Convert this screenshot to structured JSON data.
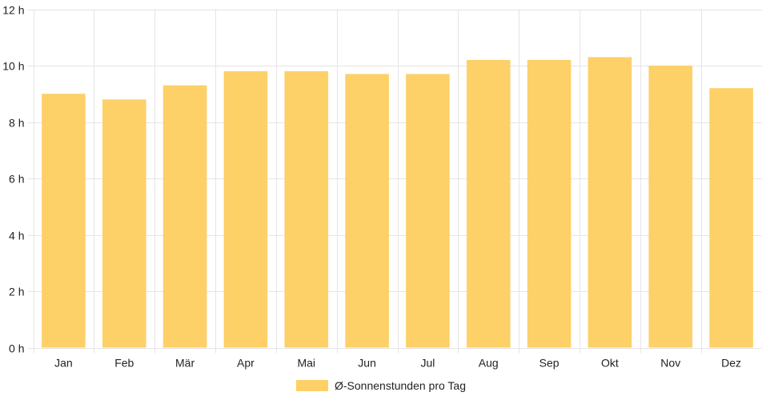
{
  "chart_data": {
    "type": "bar",
    "categories": [
      "Jan",
      "Feb",
      "Mär",
      "Apr",
      "Mai",
      "Jun",
      "Jul",
      "Aug",
      "Sep",
      "Okt",
      "Nov",
      "Dez"
    ],
    "series": [
      {
        "name": "Ø-Sonnenstunden pro Tag",
        "values": [
          9.0,
          8.8,
          9.3,
          9.8,
          9.8,
          9.7,
          9.7,
          10.2,
          10.2,
          10.3,
          10.0,
          9.2
        ],
        "color": "#fdd068"
      }
    ],
    "ylim": [
      0,
      12
    ],
    "yticks": [
      0,
      2,
      4,
      6,
      8,
      10,
      12
    ],
    "ytick_suffix": " h",
    "grid": true,
    "grid_color": "#e5e5e5",
    "legend_position": "bottom-center"
  }
}
